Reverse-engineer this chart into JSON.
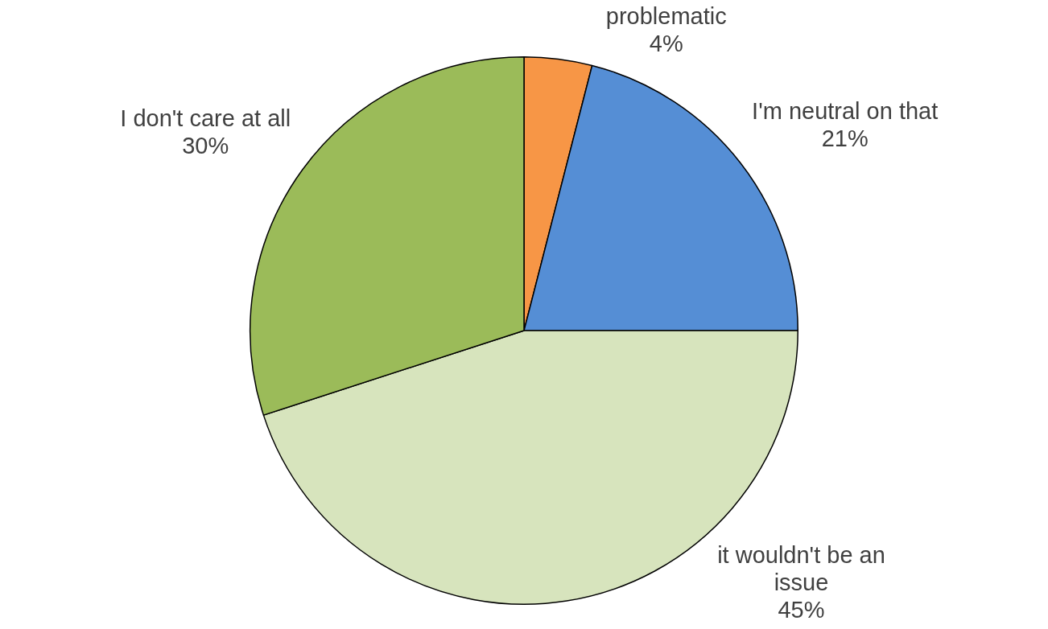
{
  "chart_data": {
    "type": "pie",
    "categories": [
      "problematic",
      "I'm neutral on that",
      "it wouldn't be an issue",
      "I don't care at all"
    ],
    "values": [
      4,
      21,
      45,
      30
    ],
    "colors": [
      "#f79646",
      "#558ed5",
      "#d7e4bd",
      "#9bbb59"
    ],
    "value_labels": [
      "4%",
      "21%",
      "45%",
      "30%"
    ]
  }
}
